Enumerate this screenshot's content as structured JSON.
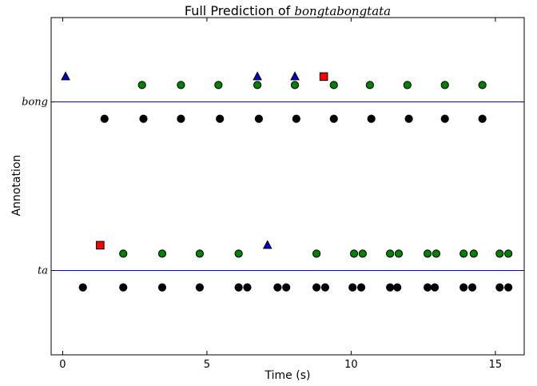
{
  "chart_data": {
    "type": "scatter",
    "title_prefix": "Full Prediction of ",
    "title_word": "bongtabongtata",
    "xlabel": "Time (s)",
    "ylabel": "Annotation",
    "xlim": [
      -0.4,
      16.0
    ],
    "ylim": [
      0,
      4
    ],
    "xticks": [
      0,
      5,
      10,
      15
    ],
    "yticks": [
      {
        "value": 1,
        "label": "ta"
      },
      {
        "value": 3,
        "label": "bong"
      }
    ],
    "colors": {
      "reference_line": "#0000ff",
      "ground_truth": "#000000",
      "prediction": "#008000",
      "false_positive": "#ff0000",
      "miss": "#0000cc"
    },
    "series": [
      {
        "marker": "circle",
        "color": "#000000",
        "y": 2.8,
        "x": [
          1.45,
          2.8,
          4.1,
          5.45,
          6.8,
          8.1,
          9.4,
          10.7,
          12.0,
          13.25,
          14.55
        ]
      },
      {
        "marker": "circle",
        "color": "#008000",
        "y": 3.2,
        "x": [
          2.75,
          4.1,
          5.4,
          6.75,
          8.05,
          9.4,
          10.65,
          11.95,
          13.25,
          14.55
        ]
      },
      {
        "marker": "triangle",
        "color": "#0000cc",
        "y": 3.3,
        "x": [
          0.1,
          6.75,
          8.05
        ]
      },
      {
        "marker": "square",
        "color": "#ff0000",
        "y": 3.3,
        "x": [
          9.05
        ]
      },
      {
        "marker": "circle",
        "color": "#000000",
        "y": 0.8,
        "x": [
          0.7,
          2.1,
          3.45,
          4.75,
          6.1,
          6.4,
          7.45,
          7.75,
          8.8,
          9.1,
          10.05,
          10.35,
          11.35,
          11.6,
          12.65,
          12.9,
          13.9,
          14.2,
          15.15,
          15.45
        ]
      },
      {
        "marker": "circle",
        "color": "#008000",
        "y": 1.2,
        "x": [
          2.1,
          3.45,
          4.75,
          6.1,
          8.8,
          10.1,
          10.4,
          11.35,
          11.65,
          12.65,
          12.95,
          13.9,
          14.25,
          15.15,
          15.45
        ]
      },
      {
        "marker": "square",
        "color": "#ff0000",
        "y": 1.3,
        "x": [
          1.3
        ]
      },
      {
        "marker": "triangle",
        "color": "#0000cc",
        "y": 1.3,
        "x": [
          7.1
        ]
      }
    ]
  }
}
